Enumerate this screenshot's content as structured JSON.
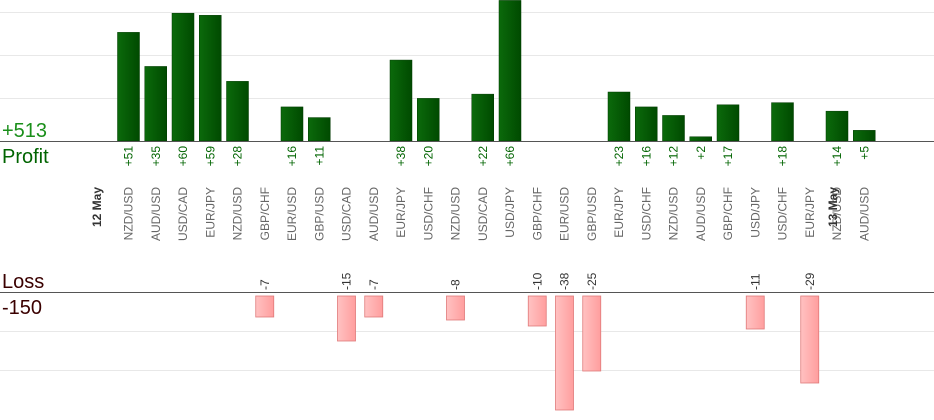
{
  "profit_summary": {
    "value": "+513",
    "label": "Profit"
  },
  "loss_summary": {
    "label": "Loss",
    "value": "-150"
  },
  "chart_data": {
    "type": "bar",
    "date_labels": [
      {
        "text": "12 May",
        "before_index": 0
      },
      {
        "text": "13 May",
        "before_index": 27
      }
    ],
    "categories": [
      "NZD/USD",
      "AUD/USD",
      "USD/CAD",
      "EUR/JPY",
      "NZD/USD",
      "GBP/CHF",
      "EUR/USD",
      "GBP/USD",
      "USD/CAD",
      "AUD/USD",
      "EUR/JPY",
      "USD/CHF",
      "NZD/USD",
      "USD/CAD",
      "USD/JPY",
      "GBP/CHF",
      "EUR/USD",
      "GBP/USD",
      "EUR/JPY",
      "USD/CHF",
      "NZD/USD",
      "AUD/USD",
      "GBP/CHF",
      "USD/JPY",
      "USD/CHF",
      "EUR/JPY",
      "NZD/USD",
      "AUD/USD"
    ],
    "series": [
      {
        "values": [
          51,
          35,
          60,
          59,
          28,
          null,
          16,
          11,
          null,
          null,
          38,
          20,
          null,
          22,
          66,
          null,
          null,
          null,
          23,
          16,
          12,
          2,
          17,
          null,
          18,
          null,
          14,
          5
        ],
        "labels": [
          "+51",
          "+35",
          "+60",
          "+59",
          "+28",
          null,
          "+16",
          "+11",
          null,
          null,
          "+38",
          "+20",
          null,
          "+22",
          "+66",
          null,
          null,
          null,
          "+23",
          "+16",
          "+12",
          "+2",
          "+17",
          null,
          "+18",
          null,
          "+14",
          "+5"
        ],
        "color": "#006400"
      },
      {
        "values": [
          null,
          null,
          null,
          null,
          null,
          -7,
          null,
          null,
          -15,
          -7,
          null,
          null,
          -8,
          null,
          null,
          -10,
          -38,
          -25,
          null,
          null,
          null,
          null,
          null,
          -11,
          null,
          -29,
          null,
          null
        ],
        "labels": [
          null,
          null,
          null,
          null,
          null,
          "-7",
          null,
          null,
          "-15",
          "-7",
          null,
          null,
          "-8",
          null,
          null,
          "-10",
          "-38",
          "-25",
          null,
          null,
          null,
          null,
          null,
          "-11",
          null,
          "-29",
          null,
          null
        ],
        "color": "#ffb0b0"
      }
    ],
    "profit_value_color": "#1a8f1a",
    "loss_label_color": "#333333",
    "profit_text_color": "#006400",
    "loss_text_color": "#3a0000",
    "category_color": "#666666",
    "grid": true
  }
}
